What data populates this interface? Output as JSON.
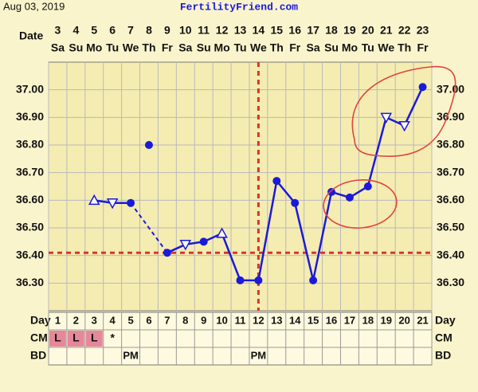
{
  "chart_data": {
    "type": "line",
    "subtitle": "Aug 03, 2019",
    "title": "FertilityFriend.com",
    "date_label": "Date",
    "categories": [
      "3",
      "4",
      "5",
      "6",
      "7",
      "8",
      "9",
      "10",
      "11",
      "12",
      "13",
      "14",
      "15",
      "16",
      "17",
      "18",
      "19",
      "20",
      "21",
      "22",
      "23"
    ],
    "weekdays": [
      "Sa",
      "Su",
      "Mo",
      "Tu",
      "We",
      "Th",
      "Fr",
      "Sa",
      "Su",
      "Mo",
      "Tu",
      "We",
      "Th",
      "Fr",
      "Sa",
      "Su",
      "Mo",
      "Tu",
      "We",
      "Th",
      "Fr"
    ],
    "values": [
      null,
      null,
      36.6,
      36.59,
      36.59,
      null,
      36.41,
      36.44,
      36.45,
      36.48,
      36.31,
      36.31,
      36.67,
      36.59,
      36.31,
      36.63,
      36.61,
      36.65,
      36.9,
      36.87,
      37.01
    ],
    "marker_style": [
      null,
      null,
      "triangle-up",
      "triangle-down",
      "circle",
      null,
      "circle",
      "triangle-down",
      "circle",
      "triangle-up",
      "circle",
      "circle",
      "circle",
      "circle",
      "circle",
      "circle",
      "circle",
      "circle",
      "triangle-down",
      "triangle-down",
      "circle"
    ],
    "excluded_values": [
      null,
      null,
      null,
      null,
      null,
      36.8,
      null,
      null,
      null,
      null,
      null,
      null,
      null,
      null,
      null,
      null,
      null,
      null,
      null,
      null,
      null
    ],
    "color": "#1a1ad8",
    "ylim": [
      36.2,
      37.1
    ],
    "yticks": [
      {
        "value": 36.3,
        "label": "36.30"
      },
      {
        "value": 36.4,
        "label": "36.40"
      },
      {
        "value": 36.5,
        "label": "36.50"
      },
      {
        "value": 36.6,
        "label": "36.60"
      },
      {
        "value": 36.7,
        "label": "36.70"
      },
      {
        "value": 36.8,
        "label": "36.80"
      },
      {
        "value": 36.9,
        "label": "36.90"
      },
      {
        "value": 37.0,
        "label": "37.00"
      }
    ],
    "grid": true,
    "coverline": 36.41,
    "ovulation_day": 12,
    "day_label": "Day",
    "days": [
      1,
      2,
      3,
      4,
      5,
      6,
      7,
      8,
      9,
      10,
      11,
      12,
      13,
      14,
      15,
      16,
      17,
      18,
      19,
      20,
      21
    ],
    "cm_label": "CM",
    "cm": [
      "L",
      "L",
      "L",
      "*",
      null,
      null,
      null,
      null,
      null,
      null,
      null,
      null,
      null,
      null,
      null,
      null,
      null,
      null,
      null,
      null,
      null
    ],
    "bd_label": "BD",
    "bd": [
      null,
      null,
      null,
      null,
      "PM",
      null,
      null,
      null,
      null,
      null,
      null,
      "PM",
      null,
      null,
      null,
      null,
      null,
      null,
      null,
      null,
      null
    ]
  }
}
